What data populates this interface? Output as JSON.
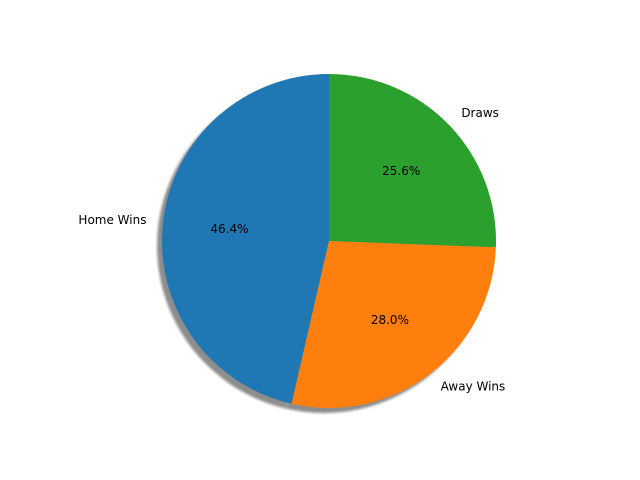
{
  "chart_data": {
    "type": "pie",
    "title": "",
    "labels": [
      "Home Wins",
      "Away Wins",
      "Draws"
    ],
    "values": [
      46.4,
      28.0,
      25.6
    ],
    "percent_labels": [
      "46.4%",
      "28.0%",
      "25.6%"
    ],
    "colors": [
      "#1f77b4",
      "#ff7f0e",
      "#2ca02c"
    ],
    "start_angle_deg": 90,
    "direction": "counterclockwise",
    "shadow": true,
    "legend": "none"
  }
}
